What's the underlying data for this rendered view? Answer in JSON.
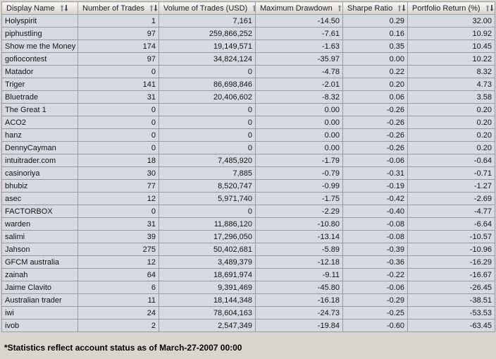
{
  "table": {
    "columns": [
      {
        "label": "Display Name"
      },
      {
        "label": "Number of Trades"
      },
      {
        "label": "Volume of Trades (USD)"
      },
      {
        "label": "Maximum Drawdown"
      },
      {
        "label": "Sharpe Ratio"
      },
      {
        "label": "Portfolio Return (%)"
      }
    ],
    "rows": [
      [
        "Holyspirit",
        "1",
        "7,161",
        "-14.50",
        "0.29",
        "32.00"
      ],
      [
        "piphustling",
        "97",
        "259,866,252",
        "-7.61",
        "0.16",
        "10.92"
      ],
      [
        "Show me the Money",
        "174",
        "19,149,571",
        "-1.63",
        "0.35",
        "10.45"
      ],
      [
        "gofiocontest",
        "97",
        "34,824,124",
        "-35.97",
        "0.00",
        "10.22"
      ],
      [
        "Matador",
        "0",
        "0",
        "-4.78",
        "0.22",
        "8.32"
      ],
      [
        "Triger",
        "141",
        "86,698,846",
        "-2.01",
        "0.20",
        "4.73"
      ],
      [
        "Bluetrade",
        "31",
        "20,406,602",
        "-8.32",
        "0.06",
        "3.58"
      ],
      [
        "The Great 1",
        "0",
        "0",
        "0.00",
        "-0.26",
        "0.20"
      ],
      [
        "ACO2",
        "0",
        "0",
        "0.00",
        "-0.26",
        "0.20"
      ],
      [
        "hanz",
        "0",
        "0",
        "0.00",
        "-0.26",
        "0.20"
      ],
      [
        "DennyCayman",
        "0",
        "0",
        "0.00",
        "-0.26",
        "0.20"
      ],
      [
        "intuitrader.com",
        "18",
        "7,485,920",
        "-1.79",
        "-0.06",
        "-0.64"
      ],
      [
        "casinoriya",
        "30",
        "7,885",
        "-0.79",
        "-0.31",
        "-0.71"
      ],
      [
        "bhubiz",
        "77",
        "8,520,747",
        "-0.99",
        "-0.19",
        "-1.27"
      ],
      [
        "asec",
        "12",
        "5,971,740",
        "-1.75",
        "-0.42",
        "-2.69"
      ],
      [
        "FACTORBOX",
        "0",
        "0",
        "-2.29",
        "-0.40",
        "-4.77"
      ],
      [
        "warden",
        "31",
        "11,886,120",
        "-10.80",
        "-0.08",
        "-6.64"
      ],
      [
        "salimi",
        "39",
        "17,296,050",
        "-13.14",
        "-0.08",
        "-10.57"
      ],
      [
        "Jahson",
        "275",
        "50,402,681",
        "-5.89",
        "-0.39",
        "-10.96"
      ],
      [
        "GFCM australia",
        "12",
        "3,489,379",
        "-12.18",
        "-0.36",
        "-16.29"
      ],
      [
        "zainah",
        "64",
        "18,691,974",
        "-9.11",
        "-0.22",
        "-16.67"
      ],
      [
        "Jaime Clavito",
        "6",
        "9,391,469",
        "-45.80",
        "-0.06",
        "-26.45"
      ],
      [
        "Australian trader",
        "11",
        "18,144,348",
        "-16.18",
        "-0.29",
        "-38.51"
      ],
      [
        "iwi",
        "24",
        "78,604,163",
        "-24.73",
        "-0.25",
        "-53.53"
      ],
      [
        "ivob",
        "2",
        "2,547,349",
        "-19.84",
        "-0.60",
        "-63.45"
      ]
    ]
  },
  "footer": {
    "note": "*Statistics reflect account status as of March-27-2007 00:00"
  },
  "icons": {
    "sort": "sort-ascending-descending-arrows"
  },
  "colors": {
    "cell_background": "#d6d9dd",
    "grid_border": "#949aa0",
    "header_gradient_top": "#f7f7f5",
    "header_gradient_bottom": "#d4d2cc",
    "page_background": "#d8d5cf",
    "text": "#141414"
  }
}
